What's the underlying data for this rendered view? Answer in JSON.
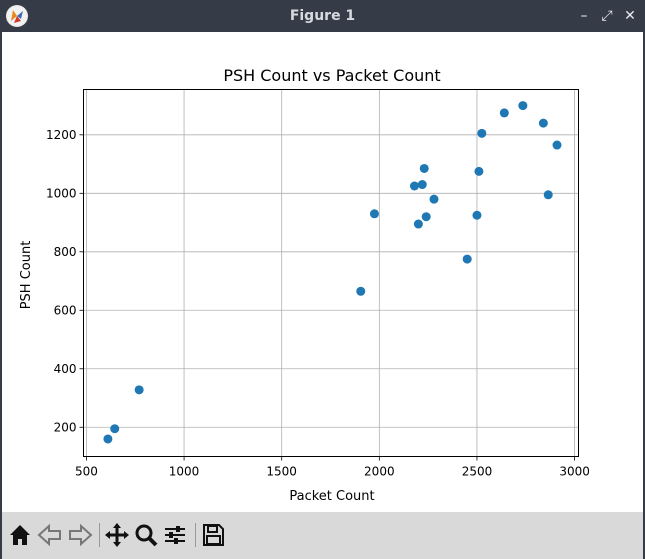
{
  "window": {
    "title": "Figure 1",
    "controls": {
      "minimize": "–",
      "maximize": "⤢",
      "close": "✕"
    }
  },
  "toolbar": {
    "buttons": [
      {
        "name": "home-icon"
      },
      {
        "name": "back-icon"
      },
      {
        "name": "forward-icon"
      },
      {
        "name": "pan-icon"
      },
      {
        "name": "zoom-icon"
      },
      {
        "name": "configure-subplots-icon"
      },
      {
        "name": "save-icon"
      }
    ]
  },
  "chart_data": {
    "type": "scatter",
    "title": "PSH Count vs Packet Count",
    "xlabel": "Packet Count",
    "ylabel": "PSH Count",
    "xlim": [
      485,
      3020
    ],
    "ylim": [
      100,
      1355
    ],
    "xticks": [
      500,
      1000,
      1500,
      2000,
      2500,
      3000
    ],
    "yticks": [
      200,
      400,
      600,
      800,
      1000,
      1200
    ],
    "grid": true,
    "marker_color": "#1f77b4",
    "points": [
      {
        "x": 610,
        "y": 160
      },
      {
        "x": 645,
        "y": 195
      },
      {
        "x": 770,
        "y": 328
      },
      {
        "x": 1905,
        "y": 665
      },
      {
        "x": 1975,
        "y": 930
      },
      {
        "x": 2180,
        "y": 1025
      },
      {
        "x": 2200,
        "y": 895
      },
      {
        "x": 2220,
        "y": 1030
      },
      {
        "x": 2230,
        "y": 1085
      },
      {
        "x": 2240,
        "y": 920
      },
      {
        "x": 2280,
        "y": 980
      },
      {
        "x": 2450,
        "y": 775
      },
      {
        "x": 2500,
        "y": 925
      },
      {
        "x": 2510,
        "y": 1075
      },
      {
        "x": 2525,
        "y": 1205
      },
      {
        "x": 2640,
        "y": 1275
      },
      {
        "x": 2735,
        "y": 1300
      },
      {
        "x": 2840,
        "y": 1240
      },
      {
        "x": 2865,
        "y": 995
      },
      {
        "x": 2910,
        "y": 1165
      }
    ]
  }
}
